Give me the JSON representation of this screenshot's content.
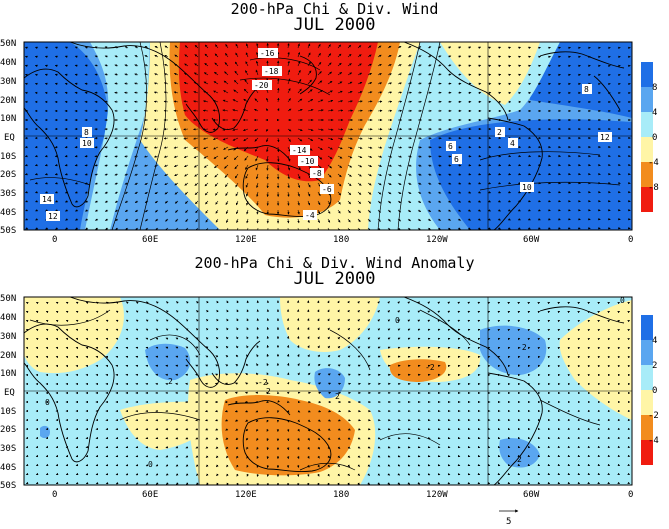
{
  "panels": [
    {
      "id": "chi",
      "title": "200-hPa Chi & Div. Wind",
      "subtitle": "JUL 2000",
      "lat_labels": [
        "50N",
        "40N",
        "30N",
        "20N",
        "10N",
        "EQ",
        "10S",
        "20S",
        "30S",
        "40S",
        "50S"
      ],
      "lon_labels": [
        "0",
        "60E",
        "120E",
        "180",
        "120W",
        "60W",
        "0"
      ],
      "colorbar": {
        "labels": [
          "8",
          "4",
          "0",
          "-4",
          "-8"
        ],
        "colors": [
          "#1f6fe6",
          "#5aa6f0",
          "#a8ecf8",
          "#fff5a6",
          "#f28c1e",
          "#f01c10"
        ]
      },
      "contour_labels": [
        "-16",
        "-18",
        "-20",
        "-14",
        "-10",
        "-8",
        "-6",
        "-4",
        "8",
        "10",
        "14",
        "12",
        "6",
        "8",
        "6",
        "2",
        "4",
        "12",
        "10"
      ]
    },
    {
      "id": "anom",
      "title": "200-hPa Chi & Div. Wind Anomaly",
      "subtitle": "JUL 2000",
      "lat_labels": [
        "50N",
        "40N",
        "30N",
        "20N",
        "10N",
        "EQ",
        "10S",
        "20S",
        "30S",
        "40S",
        "50S"
      ],
      "lon_labels": [
        "0",
        "60E",
        "120E",
        "180",
        "120W",
        "60W",
        "0"
      ],
      "colorbar": {
        "labels": [
          "4",
          "2",
          "0",
          "-2",
          "-4"
        ],
        "colors": [
          "#1f6fe6",
          "#5aa6f0",
          "#a8ecf8",
          "#fff5a6",
          "#f28c1e",
          "#f01c10"
        ]
      },
      "contour_labels": [
        "2",
        "2",
        "-2",
        "2",
        "-2",
        "0",
        "0",
        "-2",
        "2",
        "0",
        "0"
      ]
    }
  ],
  "vector_key": {
    "value": "5"
  },
  "map_style": {
    "land_color": "#000000",
    "grid": true
  }
}
